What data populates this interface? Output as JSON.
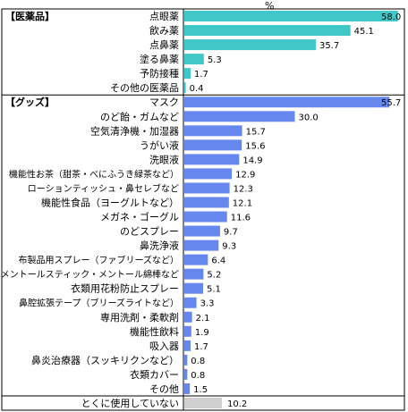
{
  "chart_data": {
    "type": "bar",
    "unit": "%",
    "colors": {
      "medicine": "#40c8c8",
      "goods": "#6688ee",
      "none": "#d0d0d0"
    },
    "groups": [
      {
        "label": "【医薬品】",
        "key": "medicine",
        "items": [
          {
            "label": "点眼薬",
            "value": 58.0,
            "value_label": "58.0"
          },
          {
            "label": "飲み薬",
            "value": 45.1,
            "value_label": "45.1"
          },
          {
            "label": "点鼻薬",
            "value": 35.7,
            "value_label": "35.7"
          },
          {
            "label": "塗る鼻薬",
            "value": 5.3,
            "value_label": "5.3"
          },
          {
            "label": "予防接種",
            "value": 1.7,
            "value_label": "1.7"
          },
          {
            "label": "その他の医薬品",
            "value": 0.4,
            "value_label": "0.4"
          }
        ]
      },
      {
        "label": "【グッズ】",
        "key": "goods",
        "items": [
          {
            "label": "マスク",
            "value": 55.7,
            "value_label": "55.7"
          },
          {
            "label": "のど飴・ガムなど",
            "value": 30.0,
            "value_label": "30.0"
          },
          {
            "label": "空気清浄機・加湿器",
            "value": 15.7,
            "value_label": "15.7"
          },
          {
            "label": "うがい液",
            "value": 15.6,
            "value_label": "15.6"
          },
          {
            "label": "洗眼液",
            "value": 14.9,
            "value_label": "14.9"
          },
          {
            "label": "機能性お茶（甜茶・べにふうき緑茶など）",
            "value": 12.9,
            "value_label": "12.9"
          },
          {
            "label": "ローションティッシュ・鼻セレブなど",
            "value": 12.3,
            "value_label": "12.3"
          },
          {
            "label": "機能性食品（ヨーグルトなど）",
            "value": 12.1,
            "value_label": "12.1"
          },
          {
            "label": "メガネ・ゴーグル",
            "value": 11.6,
            "value_label": "11.6"
          },
          {
            "label": "のどスプレー",
            "value": 9.7,
            "value_label": "9.7"
          },
          {
            "label": "鼻洗浄液",
            "value": 9.3,
            "value_label": "9.3"
          },
          {
            "label": "布製品用スプレー（ファブリーズなど）",
            "value": 6.4,
            "value_label": "6.4"
          },
          {
            "label": "鼻メントールスティック・メントール綿棒など",
            "value": 5.2,
            "value_label": "5.2"
          },
          {
            "label": "衣類用花粉防止スプレー",
            "value": 5.1,
            "value_label": "5.1"
          },
          {
            "label": "鼻腔拡張テープ（ブリーズライトなど）",
            "value": 3.3,
            "value_label": "3.3"
          },
          {
            "label": "専用洗剤・柔軟剤",
            "value": 2.1,
            "value_label": "2.1"
          },
          {
            "label": "機能性飲料",
            "value": 1.9,
            "value_label": "1.9"
          },
          {
            "label": "吸入器",
            "value": 1.7,
            "value_label": "1.7"
          },
          {
            "label": "鼻炎治療器（スッキリクンなど）",
            "value": 0.8,
            "value_label": "0.8"
          },
          {
            "label": "衣類カバー",
            "value": 0.8,
            "value_label": "0.8"
          },
          {
            "label": "その他",
            "value": 1.5,
            "value_label": "1.5"
          }
        ]
      },
      {
        "label": "",
        "key": "none",
        "items": [
          {
            "label": "とくに使用していない",
            "value": 10.2,
            "value_label": "10.2"
          }
        ]
      }
    ],
    "xlim": [
      0,
      60
    ],
    "grid": false,
    "legend": "none"
  }
}
